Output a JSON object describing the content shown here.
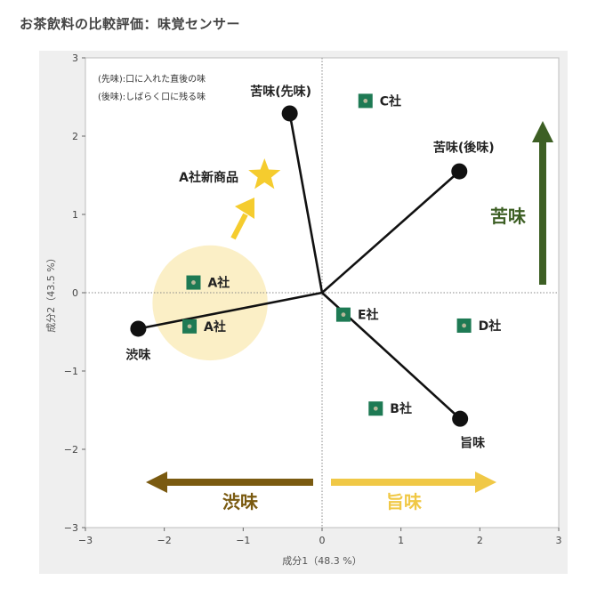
{
  "page": {
    "title": "お茶飲料の比較評価：味覚センサー"
  },
  "chart_data": {
    "type": "scatter",
    "xlabel": "成分1（48.3 %）",
    "ylabel": "成分2（43.5 %）",
    "xlim": [
      -3,
      3
    ],
    "ylim": [
      -3,
      3
    ],
    "x_ticks": [
      -3,
      -2,
      -1,
      0,
      1,
      2,
      3
    ],
    "y_ticks": [
      -3,
      -2,
      -1,
      0,
      1,
      2,
      3
    ],
    "grid": false,
    "reference_lines": "dotted lines at x=0 and y=0",
    "notes": [
      "(先味):口に入れた直後の味",
      "(後味):しばらく口に残る味"
    ],
    "samples": [
      {
        "label": "C社",
        "x": 0.55,
        "y": 2.45
      },
      {
        "label": "A社",
        "x": -1.63,
        "y": 0.13
      },
      {
        "label": "A社",
        "x": -1.68,
        "y": -0.43
      },
      {
        "label": "E社",
        "x": 0.27,
        "y": -0.28
      },
      {
        "label": "D社",
        "x": 1.8,
        "y": -0.42
      },
      {
        "label": "B社",
        "x": 0.68,
        "y": -1.48
      }
    ],
    "loading_vectors": [
      {
        "label": "苦味(先味)",
        "x": -0.41,
        "y": 2.29
      },
      {
        "label": "苦味(後味)",
        "x": 1.74,
        "y": 1.55
      },
      {
        "label": "渋味",
        "x": -2.33,
        "y": -0.46
      },
      {
        "label": "旨味",
        "x": 1.75,
        "y": -1.61
      }
    ],
    "highlight": {
      "label": "A社新商品",
      "center": [
        -1.42,
        -0.13
      ],
      "radius": 0.73,
      "star": {
        "x": -0.73,
        "y": 1.5
      }
    },
    "direction_arrows": [
      {
        "label": "苦味",
        "direction": "up",
        "color": "#3d5f24"
      },
      {
        "label": "渋味",
        "direction": "left",
        "color": "#7a5a10"
      },
      {
        "label": "旨味",
        "direction": "right",
        "color": "#f0c846"
      }
    ],
    "colors": {
      "sample_marker": "#1e7a54",
      "vector": "#111111",
      "highlight_fill": "#fbefc6",
      "star": "#f5cc2e",
      "bitter": "#3d5f24",
      "astringent": "#7a5a10",
      "umami": "#f0c846"
    }
  }
}
